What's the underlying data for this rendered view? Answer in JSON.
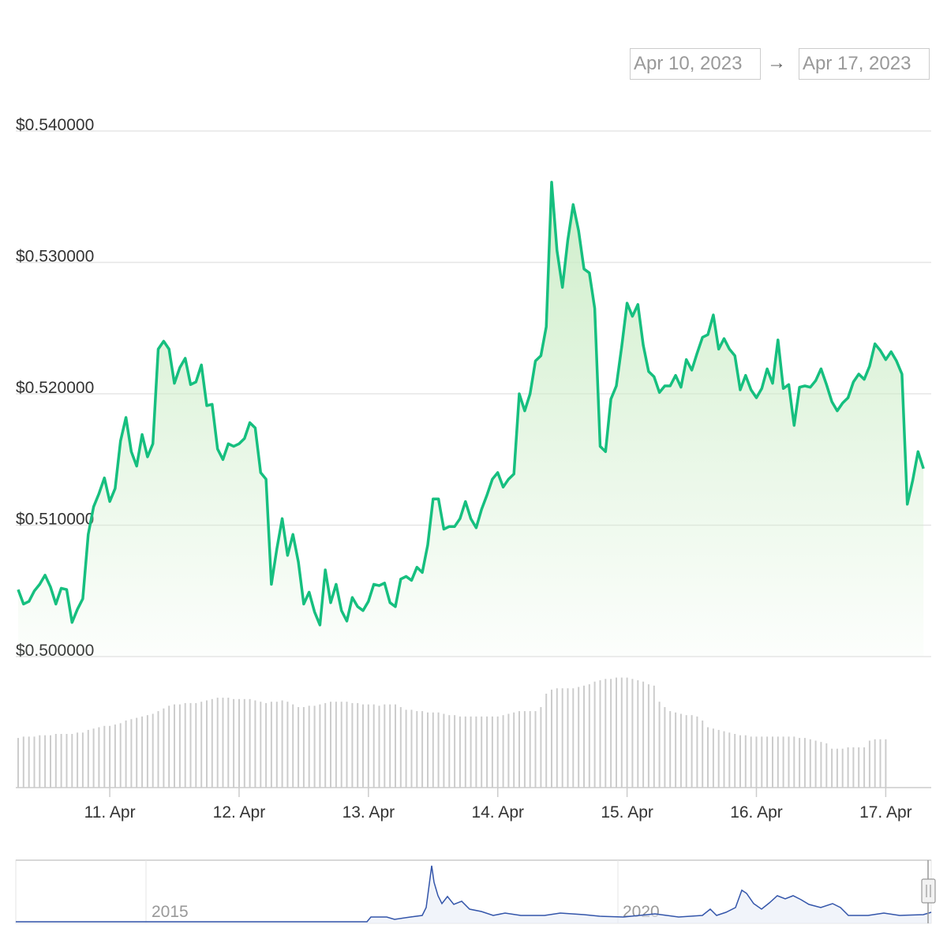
{
  "range_selector": {
    "from": "Apr 10, 2023",
    "arrow": "→",
    "to": "Apr 17, 2023"
  },
  "colors": {
    "line": "#16bf7f",
    "area_top": "#c9ecc4",
    "volume": "#cccccc",
    "navigator_line": "#3355aa",
    "grid": "#e6e6e6"
  },
  "navigator": {
    "labels": [
      "2015",
      "2020"
    ],
    "handle_icon": "drag-handle-icon"
  },
  "chart_data": {
    "type": "line",
    "title": "",
    "xlabel": "",
    "ylabel": "",
    "y_ticks": [
      "$0.540000",
      "$0.530000",
      "$0.520000",
      "$0.510000",
      "$0.500000"
    ],
    "ylim": [
      0.5,
      0.54
    ],
    "x_ticks": [
      "11. Apr",
      "12. Apr",
      "13. Apr",
      "14. Apr",
      "15. Apr",
      "16. Apr",
      "17. Apr"
    ],
    "xlim": [
      "2023-04-10T07:00",
      "2023-04-17T08:00"
    ],
    "grid": true,
    "series": [
      {
        "points": [
          [
            "2023-04-10T07:00",
            0.5051
          ],
          [
            "2023-04-10T08:00",
            0.504
          ],
          [
            "2023-04-10T09:00",
            0.5042
          ],
          [
            "2023-04-10T10:00",
            0.505
          ],
          [
            "2023-04-10T11:00",
            0.5055
          ],
          [
            "2023-04-10T12:00",
            0.5062
          ],
          [
            "2023-04-10T13:00",
            0.5053
          ],
          [
            "2023-04-10T14:00",
            0.504
          ],
          [
            "2023-04-10T15:00",
            0.5052
          ],
          [
            "2023-04-10T16:00",
            0.5051
          ],
          [
            "2023-04-10T17:00",
            0.5026
          ],
          [
            "2023-04-10T18:00",
            0.5036
          ],
          [
            "2023-04-10T19:00",
            0.5044
          ],
          [
            "2023-04-10T20:00",
            0.5093
          ],
          [
            "2023-04-10T21:00",
            0.5114
          ],
          [
            "2023-04-10T22:00",
            0.5124
          ],
          [
            "2023-04-10T23:00",
            0.5136
          ],
          [
            "2023-04-11T00:00",
            0.5118
          ],
          [
            "2023-04-11T01:00",
            0.5128
          ],
          [
            "2023-04-11T02:00",
            0.5164
          ],
          [
            "2023-04-11T03:00",
            0.5182
          ],
          [
            "2023-04-11T04:00",
            0.5156
          ],
          [
            "2023-04-11T05:00",
            0.5145
          ],
          [
            "2023-04-11T06:00",
            0.5169
          ],
          [
            "2023-04-11T07:00",
            0.5152
          ],
          [
            "2023-04-11T08:00",
            0.5162
          ],
          [
            "2023-04-11T09:00",
            0.5234
          ],
          [
            "2023-04-11T10:00",
            0.524
          ],
          [
            "2023-04-11T11:00",
            0.5234
          ],
          [
            "2023-04-11T12:00",
            0.5208
          ],
          [
            "2023-04-11T13:00",
            0.522
          ],
          [
            "2023-04-11T14:00",
            0.5227
          ],
          [
            "2023-04-11T15:00",
            0.5207
          ],
          [
            "2023-04-11T16:00",
            0.5209
          ],
          [
            "2023-04-11T17:00",
            0.5222
          ],
          [
            "2023-04-11T18:00",
            0.5191
          ],
          [
            "2023-04-11T19:00",
            0.5192
          ],
          [
            "2023-04-11T20:00",
            0.5158
          ],
          [
            "2023-04-11T21:00",
            0.515
          ],
          [
            "2023-04-11T22:00",
            0.5162
          ],
          [
            "2023-04-11T23:00",
            0.516
          ],
          [
            "2023-04-12T00:00",
            0.5162
          ],
          [
            "2023-04-12T01:00",
            0.5166
          ],
          [
            "2023-04-12T02:00",
            0.5178
          ],
          [
            "2023-04-12T03:00",
            0.5174
          ],
          [
            "2023-04-12T04:00",
            0.514
          ],
          [
            "2023-04-12T05:00",
            0.5135
          ],
          [
            "2023-04-12T06:00",
            0.5055
          ],
          [
            "2023-04-12T07:00",
            0.5082
          ],
          [
            "2023-04-12T08:00",
            0.5105
          ],
          [
            "2023-04-12T09:00",
            0.5077
          ],
          [
            "2023-04-12T10:00",
            0.5093
          ],
          [
            "2023-04-12T11:00",
            0.5072
          ],
          [
            "2023-04-12T12:00",
            0.504
          ],
          [
            "2023-04-12T13:00",
            0.5049
          ],
          [
            "2023-04-12T14:00",
            0.5034
          ],
          [
            "2023-04-12T15:00",
            0.5024
          ],
          [
            "2023-04-12T16:00",
            0.5066
          ],
          [
            "2023-04-12T17:00",
            0.5041
          ],
          [
            "2023-04-12T18:00",
            0.5055
          ],
          [
            "2023-04-12T19:00",
            0.5035
          ],
          [
            "2023-04-12T20:00",
            0.5027
          ],
          [
            "2023-04-12T21:00",
            0.5045
          ],
          [
            "2023-04-12T22:00",
            0.5038
          ],
          [
            "2023-04-12T23:00",
            0.5035
          ],
          [
            "2023-04-13T00:00",
            0.5042
          ],
          [
            "2023-04-13T01:00",
            0.5055
          ],
          [
            "2023-04-13T02:00",
            0.5054
          ],
          [
            "2023-04-13T03:00",
            0.5056
          ],
          [
            "2023-04-13T04:00",
            0.5041
          ],
          [
            "2023-04-13T05:00",
            0.5038
          ],
          [
            "2023-04-13T06:00",
            0.5059
          ],
          [
            "2023-04-13T07:00",
            0.5061
          ],
          [
            "2023-04-13T08:00",
            0.5058
          ],
          [
            "2023-04-13T09:00",
            0.5068
          ],
          [
            "2023-04-13T10:00",
            0.5064
          ],
          [
            "2023-04-13T11:00",
            0.5085
          ],
          [
            "2023-04-13T12:00",
            0.512
          ],
          [
            "2023-04-13T13:00",
            0.512
          ],
          [
            "2023-04-13T14:00",
            0.5097
          ],
          [
            "2023-04-13T15:00",
            0.5099
          ],
          [
            "2023-04-13T16:00",
            0.5099
          ],
          [
            "2023-04-13T17:00",
            0.5105
          ],
          [
            "2023-04-13T18:00",
            0.5118
          ],
          [
            "2023-04-13T19:00",
            0.5105
          ],
          [
            "2023-04-13T20:00",
            0.5098
          ],
          [
            "2023-04-13T21:00",
            0.5112
          ],
          [
            "2023-04-13T22:00",
            0.5123
          ],
          [
            "2023-04-13T23:00",
            0.5135
          ],
          [
            "2023-04-14T00:00",
            0.514
          ],
          [
            "2023-04-14T01:00",
            0.5129
          ],
          [
            "2023-04-14T02:00",
            0.5135
          ],
          [
            "2023-04-14T03:00",
            0.5139
          ],
          [
            "2023-04-14T04:00",
            0.52
          ],
          [
            "2023-04-14T05:00",
            0.5187
          ],
          [
            "2023-04-14T06:00",
            0.52
          ],
          [
            "2023-04-14T07:00",
            0.5225
          ],
          [
            "2023-04-14T08:00",
            0.5229
          ],
          [
            "2023-04-14T09:00",
            0.5251
          ],
          [
            "2023-04-14T10:00",
            0.5361
          ],
          [
            "2023-04-14T11:00",
            0.5309
          ],
          [
            "2023-04-14T12:00",
            0.5281
          ],
          [
            "2023-04-14T13:00",
            0.5317
          ],
          [
            "2023-04-14T14:00",
            0.5344
          ],
          [
            "2023-04-14T15:00",
            0.5324
          ],
          [
            "2023-04-14T16:00",
            0.5295
          ],
          [
            "2023-04-14T17:00",
            0.5292
          ],
          [
            "2023-04-14T18:00",
            0.5265
          ],
          [
            "2023-04-14T19:00",
            0.516
          ],
          [
            "2023-04-14T20:00",
            0.5156
          ],
          [
            "2023-04-14T21:00",
            0.5196
          ],
          [
            "2023-04-14T22:00",
            0.5206
          ],
          [
            "2023-04-14T23:00",
            0.5236
          ],
          [
            "2023-04-15T00:00",
            0.5269
          ],
          [
            "2023-04-15T01:00",
            0.5259
          ],
          [
            "2023-04-15T02:00",
            0.5268
          ],
          [
            "2023-04-15T03:00",
            0.5237
          ],
          [
            "2023-04-15T04:00",
            0.5217
          ],
          [
            "2023-04-15T05:00",
            0.5213
          ],
          [
            "2023-04-15T06:00",
            0.5201
          ],
          [
            "2023-04-15T07:00",
            0.5206
          ],
          [
            "2023-04-15T08:00",
            0.5206
          ],
          [
            "2023-04-15T09:00",
            0.5214
          ],
          [
            "2023-04-15T10:00",
            0.5205
          ],
          [
            "2023-04-15T11:00",
            0.5226
          ],
          [
            "2023-04-15T12:00",
            0.5218
          ],
          [
            "2023-04-15T13:00",
            0.5231
          ],
          [
            "2023-04-15T14:00",
            0.5243
          ],
          [
            "2023-04-15T15:00",
            0.5245
          ],
          [
            "2023-04-15T16:00",
            0.526
          ],
          [
            "2023-04-15T17:00",
            0.5234
          ],
          [
            "2023-04-15T18:00",
            0.5242
          ],
          [
            "2023-04-15T19:00",
            0.5234
          ],
          [
            "2023-04-15T20:00",
            0.5229
          ],
          [
            "2023-04-15T21:00",
            0.5203
          ],
          [
            "2023-04-15T22:00",
            0.5214
          ],
          [
            "2023-04-15T23:00",
            0.5203
          ],
          [
            "2023-04-16T00:00",
            0.5197
          ],
          [
            "2023-04-16T01:00",
            0.5204
          ],
          [
            "2023-04-16T02:00",
            0.5219
          ],
          [
            "2023-04-16T03:00",
            0.5208
          ],
          [
            "2023-04-16T04:00",
            0.5241
          ],
          [
            "2023-04-16T05:00",
            0.5204
          ],
          [
            "2023-04-16T06:00",
            0.5207
          ],
          [
            "2023-04-16T07:00",
            0.5176
          ],
          [
            "2023-04-16T08:00",
            0.5205
          ],
          [
            "2023-04-16T09:00",
            0.5206
          ],
          [
            "2023-04-16T10:00",
            0.5205
          ],
          [
            "2023-04-16T11:00",
            0.521
          ],
          [
            "2023-04-16T12:00",
            0.5219
          ],
          [
            "2023-04-16T13:00",
            0.5207
          ],
          [
            "2023-04-16T14:00",
            0.5194
          ],
          [
            "2023-04-16T15:00",
            0.5187
          ],
          [
            "2023-04-16T16:00",
            0.5193
          ],
          [
            "2023-04-16T17:00",
            0.5197
          ],
          [
            "2023-04-16T18:00",
            0.5209
          ],
          [
            "2023-04-16T19:00",
            0.5215
          ],
          [
            "2023-04-16T20:00",
            0.5211
          ],
          [
            "2023-04-16T21:00",
            0.5221
          ],
          [
            "2023-04-16T22:00",
            0.5238
          ],
          [
            "2023-04-16T23:00",
            0.5233
          ],
          [
            "2023-04-17T00:00",
            0.5226
          ],
          [
            "2023-04-17T01:00",
            0.5232
          ],
          [
            "2023-04-17T02:00",
            0.5225
          ],
          [
            "2023-04-17T03:00",
            0.5215
          ],
          [
            "2023-04-17T04:00",
            0.5116
          ],
          [
            "2023-04-17T05:00",
            0.5134
          ],
          [
            "2023-04-17T06:00",
            0.5156
          ],
          [
            "2023-04-17T07:00",
            0.5143
          ]
        ]
      }
    ],
    "volume_relative": [
      0.37,
      0.38,
      0.38,
      0.38,
      0.39,
      0.39,
      0.39,
      0.4,
      0.4,
      0.4,
      0.4,
      0.41,
      0.41,
      0.43,
      0.44,
      0.45,
      0.46,
      0.46,
      0.47,
      0.48,
      0.5,
      0.51,
      0.52,
      0.53,
      0.54,
      0.55,
      0.57,
      0.59,
      0.61,
      0.62,
      0.62,
      0.63,
      0.63,
      0.63,
      0.64,
      0.65,
      0.66,
      0.67,
      0.67,
      0.67,
      0.66,
      0.66,
      0.66,
      0.66,
      0.65,
      0.64,
      0.63,
      0.64,
      0.64,
      0.65,
      0.64,
      0.62,
      0.6,
      0.6,
      0.61,
      0.61,
      0.62,
      0.63,
      0.64,
      0.64,
      0.64,
      0.64,
      0.63,
      0.63,
      0.62,
      0.62,
      0.62,
      0.61,
      0.62,
      0.62,
      0.62,
      0.6,
      0.58,
      0.58,
      0.57,
      0.57,
      0.56,
      0.56,
      0.56,
      0.55,
      0.54,
      0.54,
      0.53,
      0.53,
      0.53,
      0.53,
      0.53,
      0.53,
      0.53,
      0.53,
      0.54,
      0.55,
      0.56,
      0.57,
      0.57,
      0.57,
      0.57,
      0.6,
      0.7,
      0.73,
      0.74,
      0.74,
      0.74,
      0.74,
      0.75,
      0.76,
      0.77,
      0.79,
      0.8,
      0.81,
      0.81,
      0.82,
      0.82,
      0.82,
      0.81,
      0.8,
      0.79,
      0.77,
      0.76,
      0.64,
      0.6,
      0.57,
      0.56,
      0.55,
      0.54,
      0.54,
      0.53,
      0.5,
      0.45,
      0.44,
      0.43,
      0.42,
      0.41,
      0.4,
      0.39,
      0.39,
      0.38,
      0.38,
      0.38,
      0.38,
      0.38,
      0.38,
      0.38,
      0.38,
      0.38,
      0.37,
      0.37,
      0.36,
      0.35,
      0.34,
      0.33,
      0.29,
      0.29,
      0.29,
      0.3,
      0.3,
      0.3,
      0.3,
      0.35,
      0.36,
      0.36,
      0.36
    ]
  }
}
